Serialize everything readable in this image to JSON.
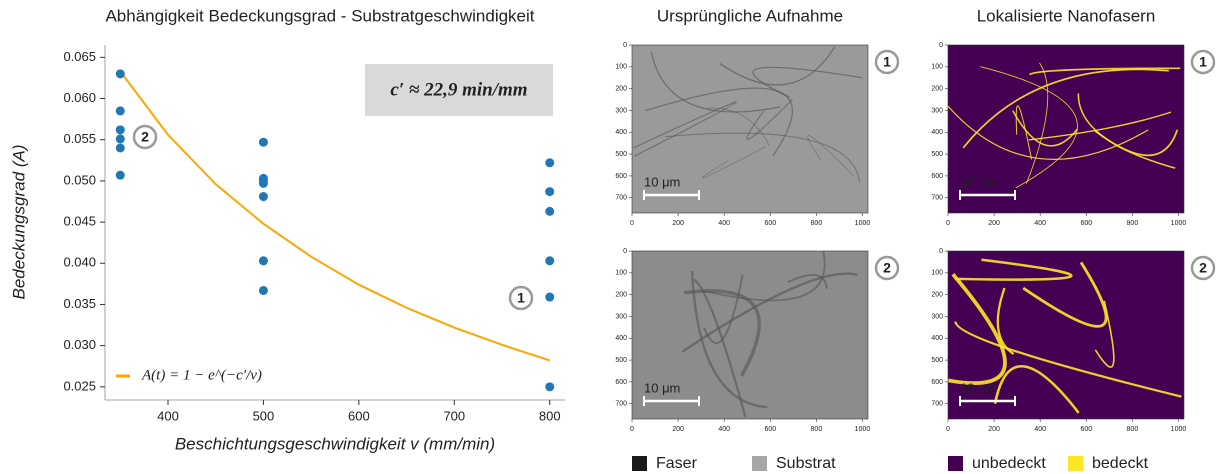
{
  "chart_data": [
    {
      "type": "scatter",
      "title": "Abhängigkeit Bedeckungsgrad - Substratgeschwindigkeit",
      "x_label": "Beschichtungsgeschwindigkeit v (mm/min)",
      "y_label": "Bedeckungsgrad (A)",
      "points": {
        "color": "#1f77b4",
        "x": [
          350,
          350,
          350,
          350,
          350,
          350,
          500,
          500,
          500,
          500,
          500,
          500,
          500,
          800,
          800,
          800,
          800,
          800,
          800
        ],
        "values": [
          0.063,
          0.0585,
          0.0562,
          0.0551,
          0.054,
          0.0507,
          0.0547,
          0.0503,
          0.05,
          0.0497,
          0.0481,
          0.0403,
          0.0367,
          0.0522,
          0.0487,
          0.0463,
          0.0403,
          0.0359,
          0.025
        ]
      },
      "series": [
        {
          "name": "A(t) = 1 − e^(−c′/v)",
          "color": "#ffa500",
          "x": [
            350,
            400,
            450,
            500,
            550,
            600,
            650,
            700,
            750,
            800
          ],
          "values": [
            0.0633,
            0.0556,
            0.0496,
            0.0448,
            0.0408,
            0.0374,
            0.0346,
            0.0322,
            0.0301,
            0.0282
          ]
        }
      ],
      "annotation": "c′ ≈ 22,9 min/mm",
      "markers": [
        "2",
        "1"
      ],
      "legend": "lower left",
      "xlim": [
        334,
        816
      ],
      "xticks": [
        400,
        500,
        600,
        700,
        800
      ],
      "ylim": [
        0.0234,
        0.0665
      ],
      "yticks": [
        0.025,
        {
          "value": 0.03,
          "label": "0.030"
        },
        0.035,
        {
          "value": 0.04,
          "label": "0.040"
        },
        0.045,
        {
          "value": 0.05,
          "label": "0.050"
        },
        0.055,
        {
          "value": 0.06,
          "label": "0.060"
        },
        0.065
      ]
    },
    {
      "type": "image",
      "style": "original",
      "title": "Ursprüngliche Aufnahme",
      "marker": "1",
      "scale_bar": "10 μm",
      "xlim": [
        0,
        1024
      ],
      "xticks": [
        0,
        200,
        400,
        600,
        800,
        1000
      ],
      "ylim": [
        770,
        0
      ],
      "yticks": [
        0,
        100,
        200,
        300,
        400,
        500,
        600,
        700
      ]
    },
    {
      "type": "image",
      "style": "original",
      "marker": "2",
      "scale_bar": "10 μm",
      "xlim": [
        0,
        1024
      ],
      "xticks": [
        0,
        200,
        400,
        600,
        800,
        1000
      ],
      "ylim": [
        770,
        0
      ],
      "yticks": [
        0,
        100,
        200,
        300,
        400,
        500,
        600,
        700
      ],
      "legend_items": [
        {
          "name": "Faser",
          "color": "#1a1a1a"
        },
        {
          "name": "Substrat",
          "color": "#a6a6a6"
        }
      ]
    },
    {
      "type": "image",
      "style": "mask",
      "title": "Lokalisierte Nanofasern",
      "marker": "1",
      "scale_bar": "10 μm",
      "xlim": [
        0,
        1024
      ],
      "xticks": [
        0,
        200,
        400,
        600,
        800,
        1000
      ],
      "ylim": [
        770,
        0
      ],
      "yticks": [
        0,
        100,
        200,
        300,
        400,
        500,
        600,
        700
      ]
    },
    {
      "type": "image",
      "style": "mask",
      "marker": "2",
      "scale_bar": "10 μm",
      "xlim": [
        0,
        1024
      ],
      "xticks": [
        0,
        200,
        400,
        600,
        800,
        1000
      ],
      "ylim": [
        770,
        0
      ],
      "yticks": [
        0,
        100,
        200,
        300,
        400,
        500,
        600,
        700
      ],
      "legend_items": [
        {
          "name": "unbedeckt",
          "color": "#440154"
        },
        {
          "name": "bedeckt",
          "color": "#fde725"
        }
      ]
    }
  ]
}
